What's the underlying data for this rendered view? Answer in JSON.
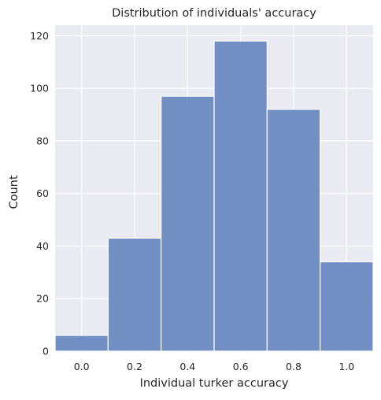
{
  "chart_data": {
    "type": "bar",
    "title": "Distribution of individuals' accuracy",
    "xlabel": "Individual turker accuracy",
    "ylabel": "Count",
    "bins": [
      {
        "x0": -0.1,
        "x1": 0.1,
        "count": 6
      },
      {
        "x0": 0.1,
        "x1": 0.3,
        "count": 43
      },
      {
        "x0": 0.3,
        "x1": 0.5,
        "count": 97
      },
      {
        "x0": 0.5,
        "x1": 0.7,
        "count": 118
      },
      {
        "x0": 0.7,
        "x1": 0.9,
        "count": 92
      },
      {
        "x0": 0.9,
        "x1": 1.1,
        "count": 34
      }
    ],
    "xlim": [
      -0.1,
      1.1
    ],
    "ylim": [
      0,
      124
    ],
    "xticks": [
      0.0,
      0.2,
      0.4,
      0.6,
      0.8,
      1.0
    ],
    "xtick_labels": [
      "0.0",
      "0.2",
      "0.4",
      "0.6",
      "0.8",
      "1.0"
    ],
    "yticks": [
      0,
      20,
      40,
      60,
      80,
      100,
      120
    ],
    "ytick_labels": [
      "0",
      "20",
      "40",
      "60",
      "80",
      "100",
      "120"
    ],
    "grid": true,
    "bar_color": "#6b8ac1",
    "background_color": "#eaeaf2",
    "grid_color": "#ffffff"
  }
}
